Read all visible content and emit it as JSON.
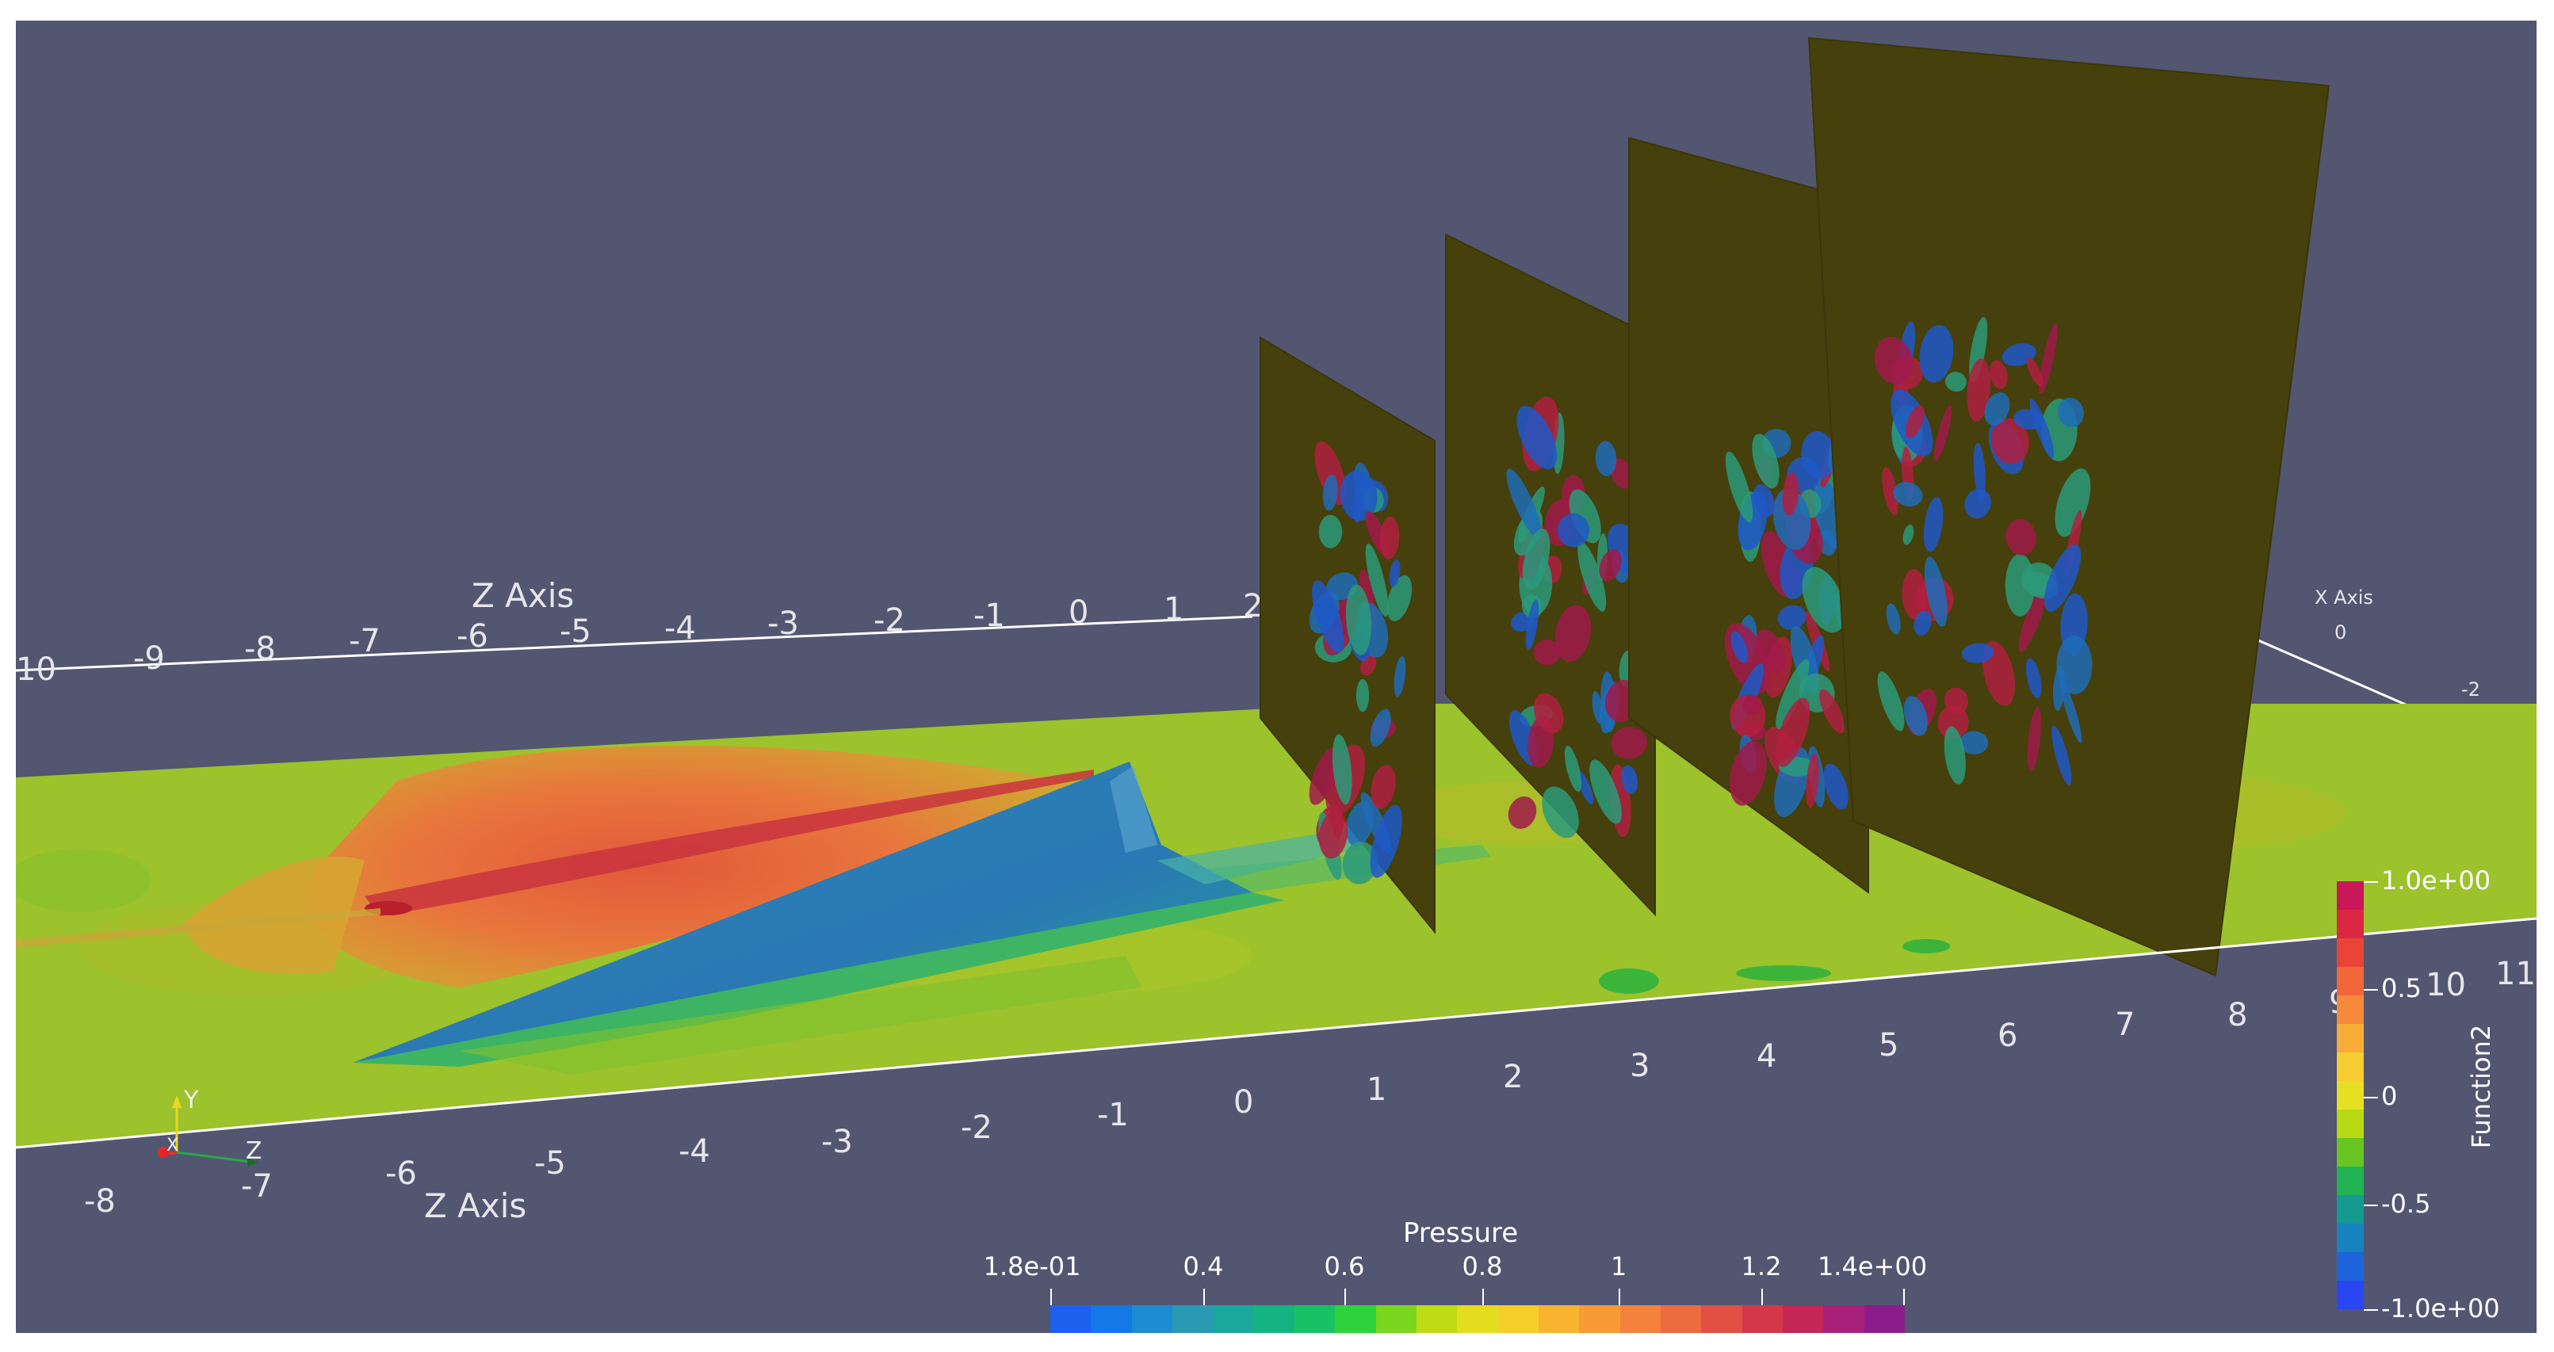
{
  "viewport": {
    "background": "#525671",
    "plane_colors": {
      "base": "#9cc22c",
      "high": "#e2733a",
      "core": "#c8343e",
      "low": "#2f7fb8",
      "slice": "#46400c"
    }
  },
  "axes": {
    "z_axis_back": {
      "title": "Z Axis",
      "ticks": [
        "10",
        "-9",
        "-8",
        "-7",
        "-6",
        "-5",
        "-4",
        "-3",
        "-2",
        "-1",
        "0",
        "1",
        "2"
      ]
    },
    "z_axis_front": {
      "title": "Z Axis",
      "ticks": [
        "-8",
        "-7",
        "-6",
        "-5",
        "-4",
        "-3",
        "-2",
        "-1",
        "0",
        "1",
        "2",
        "3",
        "4",
        "5",
        "6",
        "7",
        "8",
        "9",
        "10",
        "11"
      ]
    },
    "x_axis": {
      "title": "X Axis",
      "ticks": [
        "0",
        "-2"
      ]
    }
  },
  "orientation": {
    "y": "Y",
    "z": "Z",
    "x": "X"
  },
  "pressure_bar": {
    "title": "Pressure",
    "labels": [
      "1.8e-01",
      "0.4",
      "0.6",
      "0.8",
      "1",
      "1.2",
      "1.4e+00"
    ],
    "colors": [
      "#1e60f0",
      "#1478e6",
      "#1e8cd2",
      "#2a9ab4",
      "#1aa89c",
      "#14b482",
      "#18c264",
      "#2ed23c",
      "#7ad61e",
      "#bedc14",
      "#e4dc1e",
      "#f6ce28",
      "#f8b430",
      "#f89a36",
      "#f4823c",
      "#ee6a40",
      "#e25044",
      "#d43848",
      "#c42656",
      "#a8207a",
      "#8c1c8c"
    ]
  },
  "function2_bar": {
    "title": "Function2",
    "labels": [
      "1.0e+00",
      "0.5",
      "0",
      "-0.5",
      "-1.0e+00"
    ],
    "colors": [
      "#c8185a",
      "#da2844",
      "#ea4436",
      "#f2663a",
      "#f68a3a",
      "#f8ac38",
      "#f6cc32",
      "#e6e024",
      "#b8da14",
      "#68c622",
      "#22b454",
      "#149a8e",
      "#1682be",
      "#1e64dc",
      "#2a46f0"
    ]
  }
}
